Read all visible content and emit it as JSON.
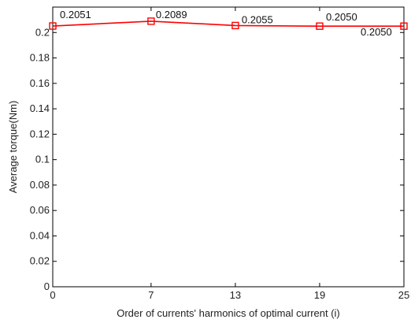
{
  "chart_data": {
    "type": "line",
    "title": "",
    "xlabel": "Order of currents' harmonics of optimal current (i)",
    "ylabel": "Average torque(Nm)",
    "x": [
      0,
      7,
      13,
      19,
      25
    ],
    "x_ticks": [
      "0",
      "7",
      "13",
      "19",
      "25"
    ],
    "xlim": [
      0,
      25
    ],
    "ylim": [
      0,
      0.22
    ],
    "y_ticks": [
      "0",
      "0.02",
      "0.04",
      "0.06",
      "0.08",
      "0.1",
      "0.12",
      "0.14",
      "0.16",
      "0.18",
      "0.2"
    ],
    "grid": false,
    "series": [
      {
        "values": [
          0.2051,
          0.2089,
          0.2055,
          0.205,
          0.205
        ],
        "color": "#ff0000",
        "marker": "square"
      }
    ],
    "data_labels": [
      "0.2051",
      "0.2089",
      "0.2055",
      "0.2050",
      "0.2050"
    ]
  }
}
